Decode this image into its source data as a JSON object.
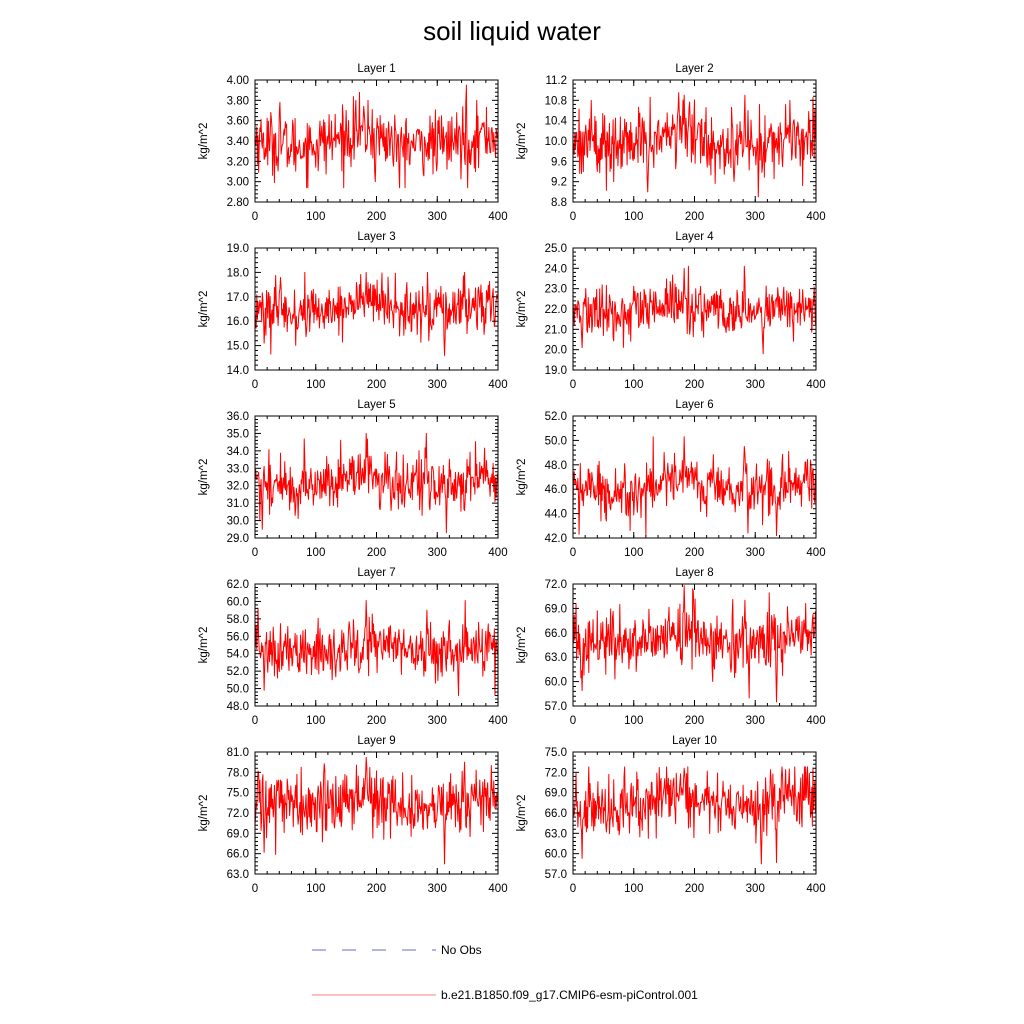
{
  "figure": {
    "title": "soil liquid water"
  },
  "legend": [
    {
      "label": "No Obs",
      "color": "#6a6ad0",
      "style": "dashed"
    },
    {
      "label": "b.e21.B1850.f09_g17.CMIP6-esm-piControl.001",
      "color": "#ff7f7f",
      "style": "solid"
    }
  ],
  "chart_data": [
    {
      "type": "line",
      "title": "Layer 1",
      "ylabel": "kg/m^2",
      "xlim": [
        0,
        400
      ],
      "ylim": [
        2.8,
        4.0
      ],
      "xticks": [
        "0",
        "100",
        "200",
        "300",
        "400"
      ],
      "yticks": [
        "2.80",
        "3.00",
        "3.20",
        "3.40",
        "3.60",
        "3.80",
        "4.00"
      ],
      "n_points": 400,
      "series": [
        {
          "color": "#ff0000",
          "mean": 3.4,
          "amplitude": 0.16,
          "min": 2.94,
          "max": 3.95,
          "peaks": [
            [
              41,
              3.78
            ],
            [
              166,
              3.8
            ],
            [
              348,
              3.95
            ]
          ],
          "troughs": [
            [
              198,
              3.0
            ],
            [
              238,
              2.94
            ],
            [
              350,
              2.9
            ]
          ]
        }
      ]
    },
    {
      "type": "line",
      "title": "Layer 2",
      "ylabel": "kg/m^2",
      "xlim": [
        0,
        400
      ],
      "ylim": [
        8.8,
        11.2
      ],
      "xticks": [
        "0",
        "100",
        "200",
        "300",
        "400"
      ],
      "yticks": [
        "8.8",
        "9.2",
        "9.6",
        "10.0",
        "10.4",
        "10.8",
        "11.2"
      ],
      "n_points": 400,
      "series": [
        {
          "color": "#ff0000",
          "mean": 10.0,
          "amplitude": 0.34,
          "min": 8.9,
          "max": 10.95,
          "peaks": [
            [
              30,
              10.8
            ],
            [
              183,
              10.9
            ],
            [
              283,
              10.9
            ]
          ],
          "troughs": [
            [
              123,
              9.0
            ],
            [
              305,
              8.9
            ]
          ]
        }
      ]
    },
    {
      "type": "line",
      "title": "Layer 3",
      "ylabel": "kg/m^2",
      "xlim": [
        0,
        400
      ],
      "ylim": [
        14.0,
        19.0
      ],
      "xticks": [
        "0",
        "100",
        "200",
        "300",
        "400"
      ],
      "yticks": [
        "14.0",
        "15.0",
        "16.0",
        "17.0",
        "18.0",
        "19.0"
      ],
      "n_points": 400,
      "series": [
        {
          "color": "#ff0000",
          "mean": 16.5,
          "amplitude": 0.6,
          "min": 14.6,
          "max": 18.0,
          "peaks": [
            [
              183,
              18.0
            ],
            [
              284,
              18.0
            ]
          ],
          "troughs": [
            [
              15,
              15.1
            ],
            [
              312,
              14.6
            ]
          ]
        }
      ]
    },
    {
      "type": "line",
      "title": "Layer 4",
      "ylabel": "kg/m^2",
      "xlim": [
        0,
        400
      ],
      "ylim": [
        19.0,
        25.0
      ],
      "xticks": [
        "0",
        "100",
        "200",
        "300",
        "400"
      ],
      "yticks": [
        "19.0",
        "20.0",
        "21.0",
        "22.0",
        "23.0",
        "24.0",
        "25.0"
      ],
      "n_points": 400,
      "series": [
        {
          "color": "#ff0000",
          "mean": 21.9,
          "amplitude": 0.65,
          "min": 19.8,
          "max": 24.1,
          "peaks": [
            [
              183,
              24.0
            ],
            [
              282,
              24.1
            ]
          ],
          "troughs": [
            [
              15,
              20.1
            ],
            [
              313,
              19.8
            ]
          ]
        }
      ]
    },
    {
      "type": "line",
      "title": "Layer 5",
      "ylabel": "kg/m^2",
      "xlim": [
        0,
        400
      ],
      "ylim": [
        29.0,
        36.0
      ],
      "xticks": [
        "0",
        "100",
        "200",
        "300",
        "400"
      ],
      "yticks": [
        "29.0",
        "30.0",
        "31.0",
        "32.0",
        "33.0",
        "34.0",
        "35.0",
        "36.0"
      ],
      "n_points": 400,
      "series": [
        {
          "color": "#ff0000",
          "mean": 32.2,
          "amplitude": 0.85,
          "min": 29.3,
          "max": 35.0,
          "peaks": [
            [
              183,
              35.0
            ],
            [
              282,
              35.0
            ]
          ],
          "troughs": [
            [
              12,
              29.5
            ],
            [
              315,
              29.3
            ]
          ]
        }
      ]
    },
    {
      "type": "line",
      "title": "Layer 6",
      "ylabel": "kg/m^2",
      "xlim": [
        0,
        400
      ],
      "ylim": [
        42.0,
        52.0
      ],
      "xticks": [
        "0",
        "100",
        "200",
        "300",
        "400"
      ],
      "yticks": [
        "42.0",
        "44.0",
        "46.0",
        "48.0",
        "50.0",
        "52.0"
      ],
      "n_points": 400,
      "series": [
        {
          "color": "#ff0000",
          "mean": 46.2,
          "amplitude": 1.2,
          "min": 42.2,
          "max": 50.3,
          "peaks": [
            [
              183,
              50.3
            ],
            [
              282,
              49.5
            ]
          ],
          "troughs": [
            [
              10,
              42.3
            ],
            [
              335,
              42.2
            ]
          ]
        }
      ]
    },
    {
      "type": "line",
      "title": "Layer 7",
      "ylabel": "kg/m^2",
      "xlim": [
        0,
        400
      ],
      "ylim": [
        48.0,
        62.0
      ],
      "xticks": [
        "0",
        "100",
        "200",
        "300",
        "400"
      ],
      "yticks": [
        "48.0",
        "50.0",
        "52.0",
        "54.0",
        "56.0",
        "58.0",
        "60.0",
        "62.0"
      ],
      "n_points": 400,
      "series": [
        {
          "color": "#ff0000",
          "mean": 54.5,
          "amplitude": 1.7,
          "min": 49.2,
          "max": 60.1,
          "peaks": [
            [
              183,
              60.1
            ],
            [
              283,
              59.0
            ]
          ],
          "troughs": [
            [
              15,
              49.8
            ],
            [
              335,
              49.2
            ]
          ]
        }
      ]
    },
    {
      "type": "line",
      "title": "Layer 8",
      "ylabel": "kg/m^2",
      "xlim": [
        0,
        400
      ],
      "ylim": [
        57.0,
        72.0
      ],
      "xticks": [
        "0",
        "100",
        "200",
        "300",
        "400"
      ],
      "yticks": [
        "57.0",
        "60.0",
        "63.0",
        "66.0",
        "69.0",
        "72.0"
      ],
      "n_points": 400,
      "series": [
        {
          "color": "#ff0000",
          "mean": 65.0,
          "amplitude": 2.0,
          "min": 57.5,
          "max": 71.8,
          "peaks": [
            [
              183,
              71.8
            ],
            [
              283,
              70.0
            ]
          ],
          "troughs": [
            [
              15,
              58.9
            ],
            [
              290,
              58.0
            ],
            [
              335,
              57.5
            ]
          ]
        }
      ]
    },
    {
      "type": "line",
      "title": "Layer 9",
      "ylabel": "kg/m^2",
      "xlim": [
        0,
        400
      ],
      "ylim": [
        63.0,
        81.0
      ],
      "xticks": [
        "0",
        "100",
        "200",
        "300",
        "400"
      ],
      "yticks": [
        "63.0",
        "66.0",
        "69.0",
        "72.0",
        "75.0",
        "78.0",
        "81.0"
      ],
      "n_points": 400,
      "series": [
        {
          "color": "#ff0000",
          "mean": 73.5,
          "amplitude": 2.3,
          "min": 64.5,
          "max": 80.2,
          "peaks": [
            [
              183,
              80.2
            ],
            [
              345,
              79.5
            ]
          ],
          "troughs": [
            [
              15,
              66.2
            ],
            [
              312,
              64.5
            ]
          ]
        }
      ]
    },
    {
      "type": "line",
      "title": "Layer 10",
      "ylabel": "kg/m^2",
      "xlim": [
        0,
        400
      ],
      "ylim": [
        57.0,
        75.0
      ],
      "xticks": [
        "0",
        "100",
        "200",
        "300",
        "400"
      ],
      "yticks": [
        "57.0",
        "60.0",
        "63.0",
        "66.0",
        "69.0",
        "72.0",
        "75.0"
      ],
      "n_points": 400,
      "series": [
        {
          "color": "#ff0000",
          "mean": 67.5,
          "amplitude": 2.4,
          "min": 58.5,
          "max": 72.8,
          "peaks": [
            [
              183,
              72.6
            ],
            [
              344,
              72.8
            ]
          ],
          "troughs": [
            [
              15,
              59.3
            ],
            [
              310,
              58.5
            ],
            [
              335,
              58.7
            ]
          ]
        }
      ]
    }
  ]
}
